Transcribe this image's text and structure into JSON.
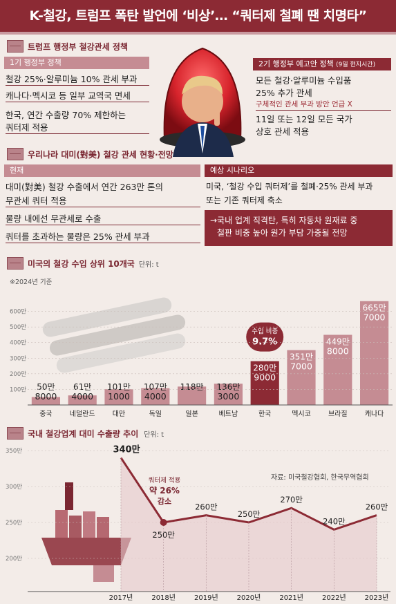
{
  "header": {
    "title": "K-철강, 트럼프 폭탄 발언에 ‘비상’… “쿼터제 철폐 땐 치명타”"
  },
  "section1": {
    "title": "트럼프 행정부 철강관세 정책",
    "first_term": {
      "label": "1기 행정부 정책",
      "items": [
        "철강 25%·알루미늄 10% 관세 부과",
        "캐나다·멕시코 등 일부 교역국 면세",
        "한국, 연간 수출량 70% 제한하는",
        "쿼터제 적용"
      ]
    },
    "second_term": {
      "label": "2기 행정부 예고안 정책",
      "label_note": "(9일 현지시간)",
      "items": [
        "모든 철강·알루미늄 수입품",
        "25% 추가 관세",
        "11일 또는 12일 모든 국가",
        "상호 관세 적용"
      ],
      "red_note": "구체적인 관세 부과 방안 언급 X"
    }
  },
  "section2": {
    "title": "우리나라 대미(對美) 철강 관세 현황·전망",
    "current": {
      "label": "현재",
      "items": [
        "대미(對美) 철강 수출에서 연간 263만 톤의",
        "무관세 쿼터 적용",
        "물량 내에선 무관세로 수출",
        "쿼터를 초과하는 물량은 25% 관세 부과"
      ]
    },
    "scenario": {
      "label": "예상 시나리오",
      "items": [
        "미국, ‘철강 수입 쿼터제’를 철폐·25% 관세 부과",
        "또는 기존 쿼터제 축소"
      ],
      "impact": [
        "→국내 업계 직격탄, 특히 자동차 원재료 중",
        "철판 비중 높아 원가 부담 가중될 전망"
      ]
    }
  },
  "section3": {
    "title": "미국의 철강 수입 상위 10개국",
    "unit": "단위: t",
    "note": "※2024년 기준",
    "callout": [
      "수입 비중",
      "9.7%"
    ]
  },
  "section4": {
    "title": "국내 철강업계 대미 수출량 추이",
    "unit": "단위: t",
    "source": "자료: 미국철강협회, 한국무역협회",
    "callout": [
      "쿼터제 적용",
      "약 26%",
      "감소"
    ]
  },
  "colors": {
    "brand": "#8c2a34",
    "bar": "#c58c93",
    "highlight": "#8c2a34",
    "line": "#8c2a34"
  },
  "chart_data": [
    {
      "type": "bar",
      "title": "미국의 철강 수입 상위 10개국",
      "unit": "단위: t",
      "categories": [
        "중국",
        "네덜란드",
        "대만",
        "독일",
        "일본",
        "베트남",
        "한국",
        "멕시코",
        "브라질",
        "캐나다"
      ],
      "values": [
        508000,
        614000,
        1011000,
        1074000,
        1180000,
        1363000,
        2809000,
        3517000,
        4498000,
        6657000
      ],
      "labels": [
        [
          "50만",
          "8000"
        ],
        [
          "61만",
          "4000"
        ],
        [
          "101만",
          "1000"
        ],
        [
          "107만",
          "4000"
        ],
        [
          "118만"
        ],
        [
          "136만",
          "3000"
        ],
        [
          "280만",
          "9000"
        ],
        [
          "351만",
          "7000"
        ],
        [
          "449만",
          "8000"
        ],
        [
          "665만",
          "7000"
        ]
      ],
      "y_ticks": [
        "100만",
        "200만",
        "300만",
        "400만",
        "500만",
        "600만"
      ],
      "ylim": [
        0,
        7000000
      ],
      "highlight": "한국"
    },
    {
      "type": "line",
      "title": "국내 철강업계 대미 수출량 추이",
      "unit": "단위: t",
      "x": [
        "2017년",
        "2018년",
        "2019년",
        "2020년",
        "2021년",
        "2022년",
        "2023년"
      ],
      "values": [
        3400000,
        2500000,
        2600000,
        2500000,
        2700000,
        2400000,
        2600000
      ],
      "labels": [
        "340만",
        "250만",
        "260만",
        "250만",
        "270만",
        "240만",
        "260만"
      ],
      "y_ticks": [
        "200만",
        "250만",
        "300만",
        "350만"
      ],
      "ylim": [
        2000000,
        3500000
      ]
    }
  ]
}
